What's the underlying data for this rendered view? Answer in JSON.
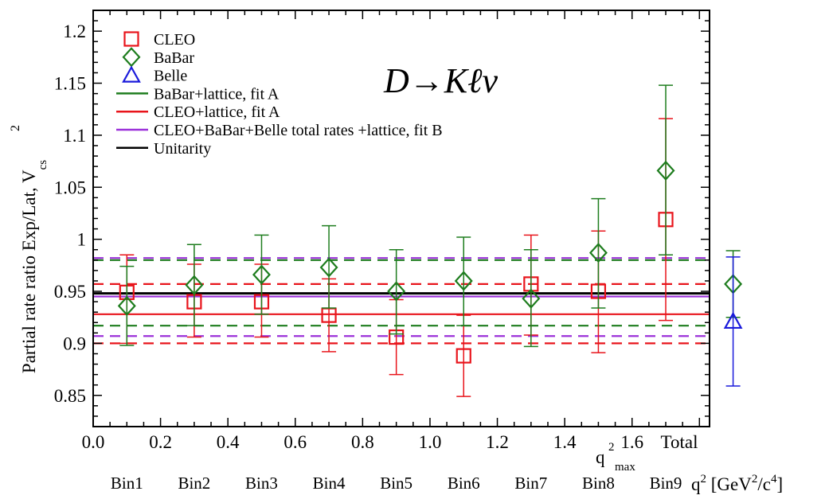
{
  "chart_data": {
    "type": "scatter",
    "annotation": "D→Kℓν",
    "ylabel": "Partial rate ratio Exp/Lat, V",
    "ylabel_sup": "2",
    "ylabel_sub": "cs",
    "xlabel": "q",
    "xlabel_sup": "2",
    "xlabel_unit": " [GeV",
    "xlabel_unit_sup": "2",
    "xlabel_unit_mid": "/c",
    "xlabel_unit_sup2": "4",
    "xlabel_unit_end": "]",
    "xlim": [
      0.0,
      1.83
    ],
    "ylim": [
      0.82,
      1.22
    ],
    "x_ticks": [
      0.0,
      0.2,
      0.4,
      0.6,
      0.8,
      1.0,
      1.2,
      1.4,
      1.6
    ],
    "x_tick_labels": [
      "0.0",
      "0.2",
      "0.4",
      "0.6",
      "0.8",
      "1.0",
      "1.2",
      "1.4",
      "1.6"
    ],
    "total_x": 1.9,
    "total_label": "Total",
    "qmax_label": "q",
    "qmax_sup": "2",
    "qmax_sub": "max",
    "y_ticks": [
      0.85,
      0.9,
      0.95,
      1.0,
      1.05,
      1.1,
      1.15,
      1.2
    ],
    "y_tick_labels": [
      "0.85",
      "0.9",
      "0.95",
      "1",
      "1.05",
      "1.1",
      "1.15",
      "1.2"
    ],
    "bin_labels": [
      "Bin1",
      "Bin2",
      "Bin3",
      "Bin4",
      "Bin5",
      "Bin6",
      "Bin7",
      "Bin8",
      "Bin9"
    ],
    "bin_x": [
      0.1,
      0.3,
      0.5,
      0.7,
      0.9,
      1.1,
      1.3,
      1.5,
      1.7
    ],
    "series": [
      {
        "name": "CLEO",
        "marker": "square",
        "color": "#e8141b",
        "points": [
          {
            "x": 0.1,
            "y": 0.949,
            "lo": 0.9,
            "hi": 0.985
          },
          {
            "x": 0.3,
            "y": 0.94,
            "lo": 0.906,
            "hi": 0.976
          },
          {
            "x": 0.5,
            "y": 0.94,
            "lo": 0.906,
            "hi": 0.976
          },
          {
            "x": 0.7,
            "y": 0.927,
            "lo": 0.892,
            "hi": 0.962
          },
          {
            "x": 0.9,
            "y": 0.906,
            "lo": 0.87,
            "hi": 0.942
          },
          {
            "x": 1.1,
            "y": 0.888,
            "lo": 0.849,
            "hi": 0.927
          },
          {
            "x": 1.3,
            "y": 0.957,
            "lo": 0.908,
            "hi": 1.004
          },
          {
            "x": 1.5,
            "y": 0.95,
            "lo": 0.891,
            "hi": 1.008
          },
          {
            "x": 1.7,
            "y": 1.019,
            "lo": 0.922,
            "hi": 1.116
          }
        ]
      },
      {
        "name": "BaBar",
        "marker": "diamond",
        "color": "#1e7d1e",
        "points": [
          {
            "x": 0.1,
            "y": 0.936,
            "lo": 0.898,
            "hi": 0.974
          },
          {
            "x": 0.3,
            "y": 0.956,
            "lo": 0.917,
            "hi": 0.995
          },
          {
            "x": 0.5,
            "y": 0.966,
            "lo": 0.928,
            "hi": 1.004
          },
          {
            "x": 0.7,
            "y": 0.973,
            "lo": 0.934,
            "hi": 1.013
          },
          {
            "x": 0.9,
            "y": 0.95,
            "lo": 0.909,
            "hi": 0.99
          },
          {
            "x": 1.1,
            "y": 0.96,
            "lo": 0.917,
            "hi": 1.002
          },
          {
            "x": 1.3,
            "y": 0.943,
            "lo": 0.897,
            "hi": 0.99
          },
          {
            "x": 1.5,
            "y": 0.987,
            "lo": 0.934,
            "hi": 1.039
          },
          {
            "x": 1.7,
            "y": 1.066,
            "lo": 0.985,
            "hi": 1.148
          },
          {
            "x": 1.9,
            "y": 0.957,
            "lo": 0.925,
            "hi": 0.989
          }
        ]
      },
      {
        "name": "Belle",
        "marker": "triangle",
        "color": "#1a1adb",
        "points": [
          {
            "x": 1.9,
            "y": 0.921,
            "lo": 0.859,
            "hi": 0.983
          }
        ]
      }
    ],
    "bands": [
      {
        "name": "BaBar+lattice, fit A",
        "color": "#1e7d1e",
        "central": 0.948,
        "lo": 0.917,
        "hi": 0.98
      },
      {
        "name": "CLEO+lattice, fit A",
        "color": "#e8141b",
        "central": 0.928,
        "lo": 0.9,
        "hi": 0.957
      },
      {
        "name": "CLEO+BaBar+Belle total rates +lattice, fit B",
        "color": "#9b30d9",
        "central": 0.945,
        "lo": 0.907,
        "hi": 0.982
      },
      {
        "name": "Unitarity",
        "color": "#000000",
        "central": 0.948
      }
    ],
    "legend": {
      "position": "top-left",
      "entries": [
        {
          "label": "CLEO",
          "kind": "square",
          "color": "#e8141b"
        },
        {
          "label": "BaBar",
          "kind": "diamond",
          "color": "#1e7d1e"
        },
        {
          "label": "Belle",
          "kind": "triangle",
          "color": "#1a1adb"
        },
        {
          "label": "BaBar+lattice, fit A",
          "kind": "line",
          "color": "#1e7d1e"
        },
        {
          "label": "CLEO+lattice, fit A",
          "kind": "line",
          "color": "#e8141b"
        },
        {
          "label": "CLEO+BaBar+Belle total rates +lattice, fit B",
          "kind": "line",
          "color": "#9b30d9"
        },
        {
          "label": "Unitarity",
          "kind": "line",
          "color": "#000000"
        }
      ]
    },
    "grid": false
  }
}
